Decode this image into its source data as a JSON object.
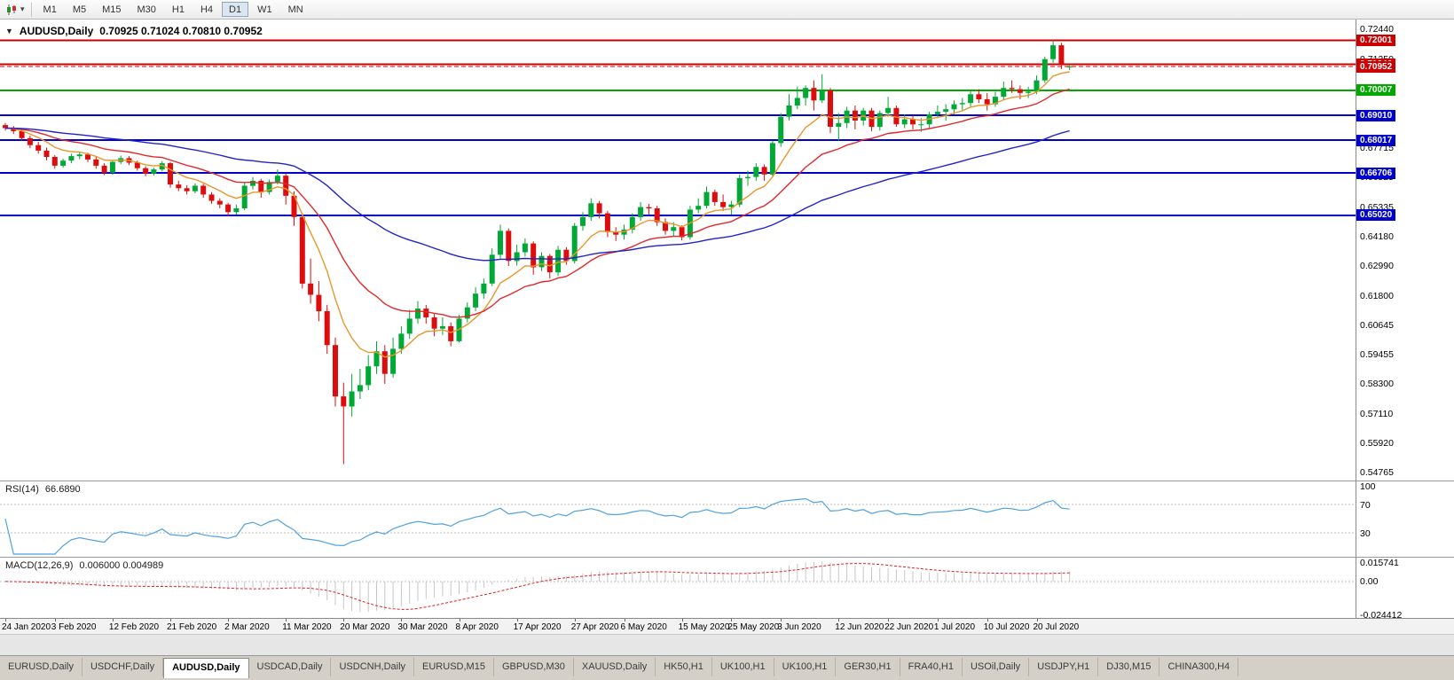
{
  "toolbar": {
    "timeframes": [
      "M1",
      "M5",
      "M15",
      "M30",
      "H1",
      "H4",
      "D1",
      "W1",
      "MN"
    ],
    "active_timeframe": "D1"
  },
  "chart": {
    "symbol_title": "AUDUSD,Daily",
    "ohlc_text": "0.70925 0.71024 0.70810 0.70952"
  },
  "chart_data": {
    "type": "candlestick",
    "symbol": "AUDUSD",
    "period": "Daily",
    "current_ohlc": {
      "open": 0.70925,
      "high": 0.71024,
      "low": 0.7081,
      "close": 0.70952
    },
    "colors": {
      "up": "#00a835",
      "down": "#dd0d0d",
      "background": "#ffffff"
    },
    "price_axis_labels": [
      "0.72440",
      "0.71250",
      "0.70060",
      "0.68870",
      "0.67715",
      "0.66525",
      "0.65335",
      "0.64180",
      "0.62990",
      "0.61800",
      "0.60645",
      "0.59455",
      "0.58300",
      "0.57110",
      "0.55920",
      "0.54765"
    ],
    "horizontal_lines": [
      {
        "price": 0.72001,
        "label": "0.72001",
        "color": "#cc0000"
      },
      {
        "price": 0.71046,
        "label": "0.71046",
        "color": "#cc0000"
      },
      {
        "price": 0.70007,
        "label": "0.70007",
        "color": "#00a800"
      },
      {
        "price": 0.6901,
        "label": "0.69010",
        "color": "#0000cc"
      },
      {
        "price": 0.68017,
        "label": "0.68017",
        "color": "#0000cc"
      },
      {
        "price": 0.66706,
        "label": "0.66706",
        "color": "#0000cc"
      },
      {
        "price": 0.6502,
        "label": "0.65020",
        "color": "#0000cc"
      }
    ],
    "bid_line": {
      "price": 0.70952,
      "label": "0.70952",
      "color": "#cc0000"
    },
    "moving_averages": [
      {
        "period": 8,
        "method": "ema",
        "color": "#e8972c"
      },
      {
        "period": 20,
        "method": "ema",
        "color": "#e02a2a"
      },
      {
        "period": 55,
        "method": "ema",
        "color": "#2222cc"
      }
    ],
    "candles_ohlc": [
      [
        0.6862,
        0.687,
        0.684,
        0.685
      ],
      [
        0.685,
        0.6858,
        0.6826,
        0.6838
      ],
      [
        0.6838,
        0.6846,
        0.68,
        0.681
      ],
      [
        0.681,
        0.682,
        0.677,
        0.6782
      ],
      [
        0.6782,
        0.6795,
        0.6748,
        0.676
      ],
      [
        0.676,
        0.6772,
        0.6722,
        0.6735
      ],
      [
        0.6735,
        0.6742,
        0.6688,
        0.67
      ],
      [
        0.67,
        0.6728,
        0.6692,
        0.672
      ],
      [
        0.672,
        0.6748,
        0.671,
        0.6738
      ],
      [
        0.6738,
        0.6756,
        0.6726,
        0.6745
      ],
      [
        0.6745,
        0.6752,
        0.6714,
        0.6725
      ],
      [
        0.6725,
        0.6735,
        0.6688,
        0.67
      ],
      [
        0.67,
        0.671,
        0.6662,
        0.6672
      ],
      [
        0.6672,
        0.6722,
        0.6664,
        0.6715
      ],
      [
        0.6715,
        0.674,
        0.6706,
        0.673
      ],
      [
        0.673,
        0.6738,
        0.6702,
        0.6712
      ],
      [
        0.6712,
        0.672,
        0.668,
        0.669
      ],
      [
        0.669,
        0.6698,
        0.6658,
        0.6668
      ],
      [
        0.6668,
        0.6692,
        0.666,
        0.6685
      ],
      [
        0.6685,
        0.6718,
        0.6678,
        0.671
      ],
      [
        0.671,
        0.6715,
        0.6612,
        0.6625
      ],
      [
        0.6625,
        0.664,
        0.6598,
        0.661
      ],
      [
        0.661,
        0.6622,
        0.6585,
        0.6598
      ],
      [
        0.6598,
        0.663,
        0.659,
        0.662
      ],
      [
        0.662,
        0.6628,
        0.6572,
        0.6585
      ],
      [
        0.6585,
        0.6595,
        0.6548,
        0.656
      ],
      [
        0.656,
        0.657,
        0.653,
        0.6545
      ],
      [
        0.6545,
        0.6552,
        0.6498,
        0.6515
      ],
      [
        0.6515,
        0.6545,
        0.6505,
        0.653
      ],
      [
        0.653,
        0.6632,
        0.6522,
        0.662
      ],
      [
        0.662,
        0.6655,
        0.6605,
        0.664
      ],
      [
        0.664,
        0.6648,
        0.6572,
        0.6595
      ],
      [
        0.6595,
        0.6645,
        0.6585,
        0.6635
      ],
      [
        0.6635,
        0.6685,
        0.6625,
        0.666
      ],
      [
        0.666,
        0.6668,
        0.6545,
        0.658
      ],
      [
        0.658,
        0.6598,
        0.646,
        0.6495
      ],
      [
        0.6495,
        0.651,
        0.621,
        0.623
      ],
      [
        0.623,
        0.633,
        0.615,
        0.6185
      ],
      [
        0.6185,
        0.624,
        0.608,
        0.612
      ],
      [
        0.612,
        0.6145,
        0.595,
        0.5985
      ],
      [
        0.5985,
        0.6015,
        0.574,
        0.578
      ],
      [
        0.578,
        0.5835,
        0.551,
        0.574
      ],
      [
        0.574,
        0.587,
        0.57,
        0.58
      ],
      [
        0.58,
        0.589,
        0.577,
        0.5825
      ],
      [
        0.5825,
        0.5945,
        0.5805,
        0.59
      ],
      [
        0.59,
        0.6,
        0.587,
        0.596
      ],
      [
        0.596,
        0.5985,
        0.583,
        0.587
      ],
      [
        0.587,
        0.6015,
        0.5855,
        0.597
      ],
      [
        0.597,
        0.606,
        0.595,
        0.603
      ],
      [
        0.603,
        0.6125,
        0.601,
        0.609
      ],
      [
        0.609,
        0.616,
        0.607,
        0.613
      ],
      [
        0.613,
        0.6145,
        0.607,
        0.6095
      ],
      [
        0.6095,
        0.611,
        0.602,
        0.605
      ],
      [
        0.605,
        0.6095,
        0.6025,
        0.606
      ],
      [
        0.606,
        0.6075,
        0.598,
        0.6
      ],
      [
        0.6,
        0.6105,
        0.5995,
        0.609
      ],
      [
        0.609,
        0.6155,
        0.6075,
        0.6135
      ],
      [
        0.6135,
        0.6215,
        0.612,
        0.619
      ],
      [
        0.619,
        0.625,
        0.617,
        0.623
      ],
      [
        0.623,
        0.637,
        0.622,
        0.6345
      ],
      [
        0.6345,
        0.6465,
        0.633,
        0.644
      ],
      [
        0.644,
        0.645,
        0.63,
        0.632
      ],
      [
        0.632,
        0.6385,
        0.6302,
        0.6355
      ],
      [
        0.6355,
        0.641,
        0.6338,
        0.639
      ],
      [
        0.639,
        0.6398,
        0.6265,
        0.6295
      ],
      [
        0.6295,
        0.6355,
        0.628,
        0.634
      ],
      [
        0.634,
        0.6348,
        0.625,
        0.6275
      ],
      [
        0.6275,
        0.638,
        0.626,
        0.6365
      ],
      [
        0.6365,
        0.6375,
        0.6305,
        0.632
      ],
      [
        0.632,
        0.6472,
        0.631,
        0.646
      ],
      [
        0.646,
        0.6515,
        0.644,
        0.6495
      ],
      [
        0.6495,
        0.657,
        0.648,
        0.655
      ],
      [
        0.655,
        0.656,
        0.649,
        0.651
      ],
      [
        0.651,
        0.652,
        0.6415,
        0.6435
      ],
      [
        0.6435,
        0.6455,
        0.64,
        0.6425
      ],
      [
        0.6425,
        0.6465,
        0.6405,
        0.6445
      ],
      [
        0.6445,
        0.651,
        0.643,
        0.6495
      ],
      [
        0.6495,
        0.6555,
        0.648,
        0.6535
      ],
      [
        0.6535,
        0.6548,
        0.6505,
        0.653
      ],
      [
        0.653,
        0.654,
        0.646,
        0.6475
      ],
      [
        0.6475,
        0.649,
        0.6425,
        0.644
      ],
      [
        0.644,
        0.6475,
        0.642,
        0.6455
      ],
      [
        0.6455,
        0.6462,
        0.6402,
        0.6415
      ],
      [
        0.6415,
        0.654,
        0.6405,
        0.6525
      ],
      [
        0.6525,
        0.657,
        0.651,
        0.654
      ],
      [
        0.654,
        0.6617,
        0.653,
        0.6595
      ],
      [
        0.6595,
        0.6605,
        0.654,
        0.6555
      ],
      [
        0.6555,
        0.6585,
        0.652,
        0.6535
      ],
      [
        0.6535,
        0.656,
        0.6505,
        0.6545
      ],
      [
        0.6545,
        0.6665,
        0.6535,
        0.665
      ],
      [
        0.665,
        0.668,
        0.662,
        0.6655
      ],
      [
        0.6655,
        0.671,
        0.664,
        0.6695
      ],
      [
        0.6695,
        0.6705,
        0.664,
        0.6665
      ],
      [
        0.6665,
        0.68,
        0.6655,
        0.679
      ],
      [
        0.679,
        0.691,
        0.6775,
        0.6895
      ],
      [
        0.6895,
        0.6985,
        0.688,
        0.694
      ],
      [
        0.694,
        0.7015,
        0.6925,
        0.697
      ],
      [
        0.697,
        0.702,
        0.694,
        0.701
      ],
      [
        0.701,
        0.704,
        0.692,
        0.696
      ],
      [
        0.696,
        0.7065,
        0.695,
        0.7
      ],
      [
        0.7,
        0.701,
        0.683,
        0.6855
      ],
      [
        0.6855,
        0.691,
        0.68,
        0.687
      ],
      [
        0.687,
        0.6935,
        0.685,
        0.692
      ],
      [
        0.692,
        0.694,
        0.6845,
        0.688
      ],
      [
        0.688,
        0.693,
        0.686,
        0.692
      ],
      [
        0.692,
        0.693,
        0.6838,
        0.6855
      ],
      [
        0.6855,
        0.692,
        0.684,
        0.691
      ],
      [
        0.691,
        0.6975,
        0.6895,
        0.693
      ],
      [
        0.693,
        0.694,
        0.6855,
        0.6865
      ],
      [
        0.6865,
        0.6905,
        0.685,
        0.6885
      ],
      [
        0.6885,
        0.69,
        0.6845,
        0.6865
      ],
      [
        0.6865,
        0.689,
        0.6835,
        0.6865
      ],
      [
        0.6865,
        0.6915,
        0.685,
        0.6905
      ],
      [
        0.6905,
        0.694,
        0.689,
        0.6915
      ],
      [
        0.6915,
        0.6945,
        0.688,
        0.6925
      ],
      [
        0.6925,
        0.696,
        0.6905,
        0.6945
      ],
      [
        0.6945,
        0.697,
        0.692,
        0.695
      ],
      [
        0.695,
        0.7,
        0.6935,
        0.6985
      ],
      [
        0.6985,
        0.7005,
        0.695,
        0.6965
      ],
      [
        0.6965,
        0.699,
        0.692,
        0.6945
      ],
      [
        0.6945,
        0.6995,
        0.6935,
        0.6975
      ],
      [
        0.6975,
        0.7035,
        0.696,
        0.701
      ],
      [
        0.701,
        0.704,
        0.699,
        0.7005
      ],
      [
        0.7005,
        0.702,
        0.6965,
        0.699
      ],
      [
        0.699,
        0.7015,
        0.697,
        0.6995
      ],
      [
        0.6995,
        0.706,
        0.6985,
        0.704
      ],
      [
        0.704,
        0.7135,
        0.703,
        0.7125
      ],
      [
        0.7125,
        0.72,
        0.711,
        0.718
      ],
      [
        0.718,
        0.719,
        0.7085,
        0.7105
      ],
      [
        0.70925,
        0.71024,
        0.7081,
        0.70952
      ]
    ],
    "date_labels": [
      {
        "text": "24 Jan 2020",
        "i": 0
      },
      {
        "text": "3 Feb 2020",
        "i": 6
      },
      {
        "text": "12 Feb 2020",
        "i": 13
      },
      {
        "text": "21 Feb 2020",
        "i": 20
      },
      {
        "text": "2 Mar 2020",
        "i": 27
      },
      {
        "text": "11 Mar 2020",
        "i": 34
      },
      {
        "text": "20 Mar 2020",
        "i": 41
      },
      {
        "text": "30 Mar 2020",
        "i": 48
      },
      {
        "text": "8 Apr 2020",
        "i": 55
      },
      {
        "text": "17 Apr 2020",
        "i": 62
      },
      {
        "text": "27 Apr 2020",
        "i": 69
      },
      {
        "text": "6 May 2020",
        "i": 75
      },
      {
        "text": "15 May 2020",
        "i": 82
      },
      {
        "text": "25 May 2020",
        "i": 88
      },
      {
        "text": "3 Jun 2020",
        "i": 94
      },
      {
        "text": "12 Jun 2020",
        "i": 101
      },
      {
        "text": "22 Jun 2020",
        "i": 107
      },
      {
        "text": "1 Jul 2020",
        "i": 113
      },
      {
        "text": "10 Jul 2020",
        "i": 119
      },
      {
        "text": "20 Jul 2020",
        "i": 125
      }
    ],
    "indicators": {
      "rsi": {
        "name": "RSI(14)",
        "current": "66.6890",
        "axis_labels": [
          "100",
          "70",
          "30"
        ],
        "levels": [
          70,
          30
        ],
        "color": "#4fa1e0",
        "range": [
          0,
          100
        ]
      },
      "macd": {
        "name": "MACD(12,26,9)",
        "current": "0.006000 0.004989",
        "axis_labels": [
          "0.015741",
          "0.00",
          "-0.024412"
        ],
        "range": [
          -0.024412,
          0.015741
        ],
        "histogram_color": "#c6c6c6",
        "signal_color": "#e02020"
      }
    }
  },
  "tabs": {
    "items": [
      "EURUSD,Daily",
      "USDCHF,Daily",
      "AUDUSD,Daily",
      "USDCAD,Daily",
      "USDCNH,Daily",
      "EURUSD,M15",
      "GBPUSD,M30",
      "XAUUSD,Daily",
      "HK50,H1",
      "UK100,H1",
      "UK100,H1",
      "GER30,H1",
      "FRA40,H1",
      "USOil,Daily",
      "USDJPY,H1",
      "DJ30,M15",
      "CHINA300,H4"
    ],
    "active": "AUDUSD,Daily"
  }
}
